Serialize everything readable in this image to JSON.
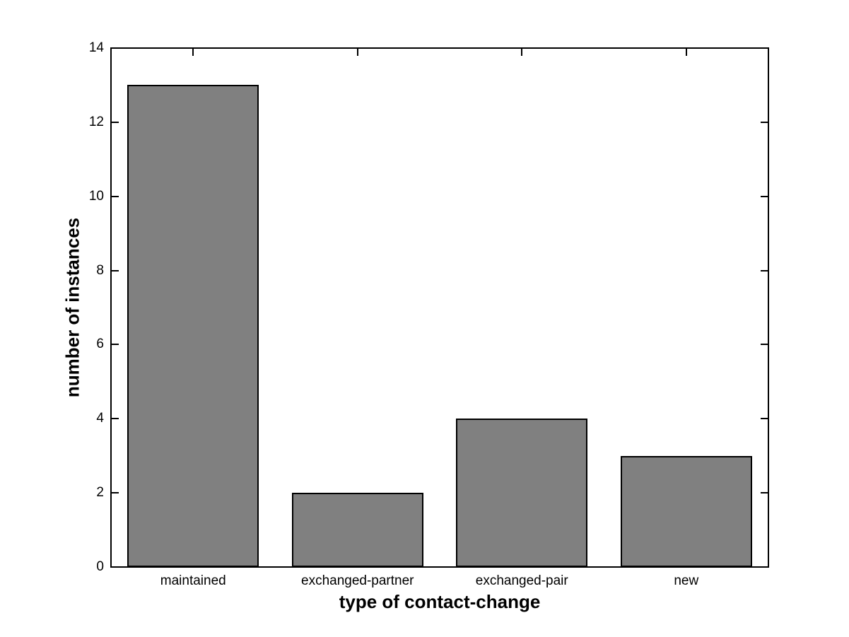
{
  "chart_data": {
    "type": "bar",
    "title": "",
    "xlabel": "type of contact-change",
    "ylabel": "number of instances",
    "categories": [
      "maintained",
      "exchanged-partner",
      "exchanged-pair",
      "new"
    ],
    "values": [
      13,
      2,
      4,
      3
    ],
    "ylim": [
      0,
      14
    ],
    "yticks": [
      0,
      2,
      4,
      6,
      8,
      10,
      12,
      14
    ],
    "bar_width_fraction": 0.8,
    "bar_fill_color": "#808080",
    "bar_edge_color": "#000000",
    "axis_color": "#000000",
    "background_color": "#ffffff",
    "grid": false,
    "legend": null
  }
}
